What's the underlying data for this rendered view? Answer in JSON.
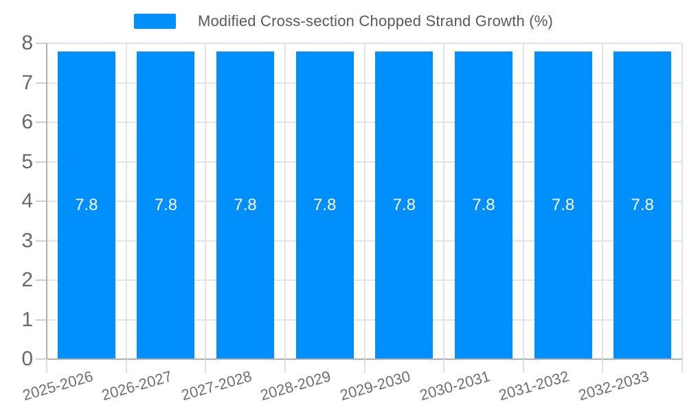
{
  "chart_data": {
    "type": "bar",
    "title": "Modified Cross-section Chopped Strand Growth (%)",
    "categories": [
      "2025-2026",
      "2026-2027",
      "2027-2028",
      "2028-2029",
      "2029-2030",
      "2030-2031",
      "2031-2032",
      "2032-2033"
    ],
    "series": [
      {
        "name": "Modified Cross-section Chopped Strand Growth (%)",
        "values": [
          7.8,
          7.8,
          7.8,
          7.8,
          7.8,
          7.8,
          7.8,
          7.8
        ]
      }
    ],
    "data_labels": [
      "7.8",
      "7.8",
      "7.8",
      "7.8",
      "7.8",
      "7.8",
      "7.8",
      "7.8"
    ],
    "xlabel": "",
    "ylabel": "",
    "ylim": [
      0,
      8
    ],
    "y_ticks": [
      0,
      1,
      2,
      3,
      4,
      5,
      6,
      7,
      8
    ],
    "grid": true,
    "legend_position": "top",
    "colors": {
      "bar": "#008FFB",
      "bar_label": "#ffffff",
      "legend_text": "#58595b",
      "y_label": "#686868",
      "x_label": "#6f6f6f",
      "gridline": "#e4e4e4",
      "axis_line": "#b0b0b0",
      "y_tick": "#cfcfcf",
      "x_tick": "#e0e0e0"
    }
  }
}
